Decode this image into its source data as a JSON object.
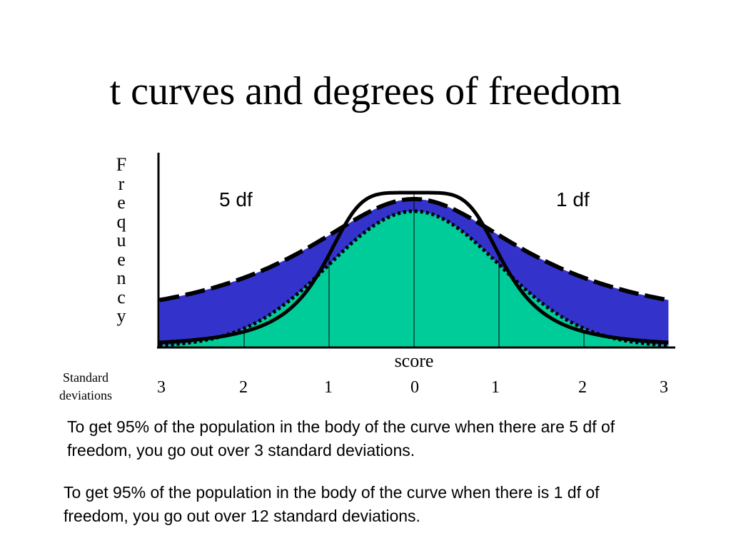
{
  "slide": {
    "title": "t curves and degrees of freedom",
    "notes": [
      "To get 95% of the population in the body of the curve when there are 5 df of freedom, you go out over 3 standard deviations.",
      "To get 95% of the population in the body of the curve when there is 1 df of freedom, you go out over 12 standard deviations."
    ]
  },
  "chart_data": {
    "type": "line",
    "ylabel": "Frequency",
    "xlabel": "score",
    "row_label": "Standard deviations",
    "xticks": [
      "3",
      "2",
      "1",
      "0",
      "1",
      "2",
      "3"
    ],
    "xlim": [
      -3,
      3
    ],
    "curve_labels": [
      "5 df",
      "1 df"
    ],
    "colors": {
      "normal_fill": "#00cc99",
      "tail_fill": "#3333cc",
      "curve": "#000000"
    }
  }
}
